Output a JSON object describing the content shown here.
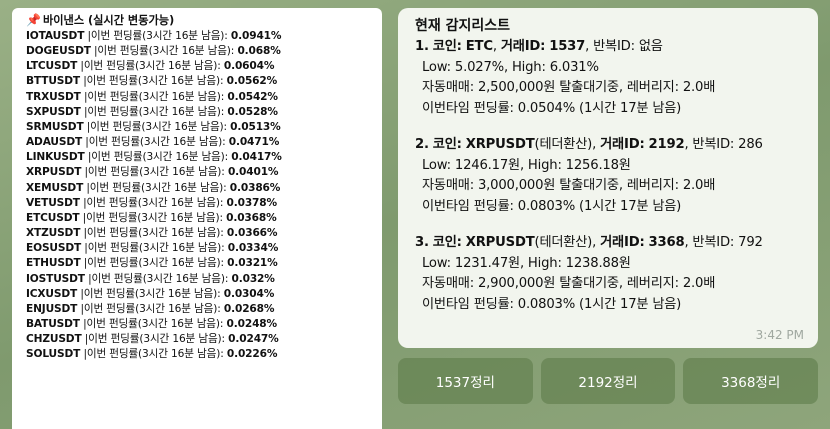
{
  "left": {
    "pin_icon": "pushpin-icon",
    "title": "바이낸스 (실시간 변동가능)",
    "desc": "|이번 펀딩률(3시간 16분 남음):",
    "rows": [
      {
        "symbol": "IOTAUSDT",
        "rate": "0.0941%"
      },
      {
        "symbol": "DOGEUSDT",
        "rate": "0.068%"
      },
      {
        "symbol": "LTCUSDT",
        "rate": "0.0604%"
      },
      {
        "symbol": "BTTUSDT",
        "rate": "0.0562%"
      },
      {
        "symbol": "TRXUSDT",
        "rate": "0.0542%"
      },
      {
        "symbol": "SXPUSDT",
        "rate": "0.0528%"
      },
      {
        "symbol": "SRMUSDT",
        "rate": "0.0513%"
      },
      {
        "symbol": "ADAUSDT",
        "rate": "0.0471%"
      },
      {
        "symbol": "LINKUSDT",
        "rate": "0.0417%"
      },
      {
        "symbol": "XRPUSDT",
        "rate": "0.0401%"
      },
      {
        "symbol": "XEMUSDT",
        "rate": "0.0386%"
      },
      {
        "symbol": "VETUSDT",
        "rate": "0.0378%"
      },
      {
        "symbol": "ETCUSDT",
        "rate": "0.0368%"
      },
      {
        "symbol": "XTZUSDT",
        "rate": "0.0366%"
      },
      {
        "symbol": "EOSUSDT",
        "rate": "0.0334%"
      },
      {
        "symbol": "ETHUSDT",
        "rate": "0.0321%"
      },
      {
        "symbol": "IOSTUSDT",
        "rate": "0.032%"
      },
      {
        "symbol": "ICXUSDT",
        "rate": "0.0304%"
      },
      {
        "symbol": "ENJUSDT",
        "rate": "0.0268%"
      },
      {
        "symbol": "BATUSDT",
        "rate": "0.0248%"
      },
      {
        "symbol": "CHZUSDT",
        "rate": "0.0247%"
      },
      {
        "symbol": "SOLUSDT",
        "rate": "0.0226%"
      }
    ]
  },
  "watch": {
    "title": "현재 감지리스트",
    "items": [
      {
        "num": "1.",
        "coin_label": "코인:",
        "coin": "ETC",
        "coin_suffix": "",
        "trade_label": "거래ID:",
        "trade_id": "1537",
        "repeat": ", 반복ID: 없음",
        "range": "Low: 5.027%, High: 6.031%",
        "auto": "자동매매: 2,500,000원 탈출대기중, 레버리지: 2.0배",
        "funding": "이번타임 펀딩률: 0.0504% (1시간 17분 남음)"
      },
      {
        "num": "2.",
        "coin_label": "코인:",
        "coin": "XRPUSDT",
        "coin_suffix": "(테더환산),",
        "trade_label": "거래ID:",
        "trade_id": "2192",
        "repeat": ", 반복ID: 286",
        "range": "Low: 1246.17원, High: 1256.18원",
        "auto": "자동매매: 3,000,000원 탈출대기중, 레버리지: 2.0배",
        "funding": "이번타임 펀딩률: 0.0803% (1시간 17분 남음)"
      },
      {
        "num": "3.",
        "coin_label": "코인:",
        "coin": "XRPUSDT",
        "coin_suffix": "(테더환산),",
        "trade_label": "거래ID:",
        "trade_id": "3368",
        "repeat": ", 반복ID: 792",
        "range": "Low: 1231.47원, High: 1238.88원",
        "auto": "자동매매: 2,900,000원 탈출대기중, 레버리지: 2.0배",
        "funding": "이번타임 펀딩률: 0.0803% (1시간 17분 남음)"
      }
    ],
    "time": "3:42 PM"
  },
  "buttons": [
    "1537정리",
    "2192정리",
    "3368정리"
  ]
}
